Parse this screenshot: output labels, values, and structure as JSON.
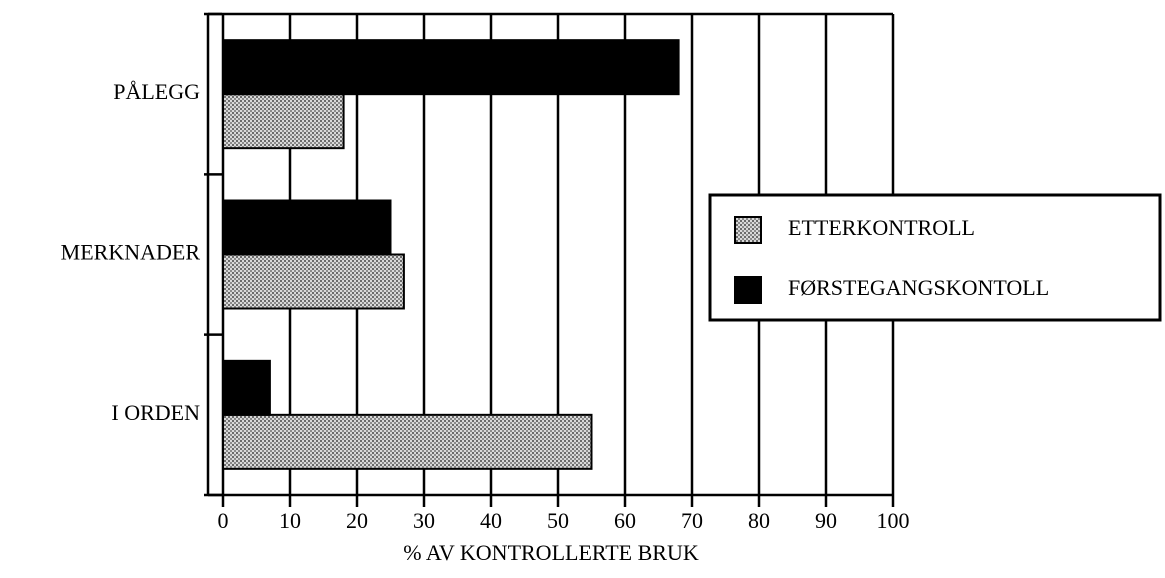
{
  "chart_data": {
    "type": "hbar",
    "xlabel": "% AV KONTROLLERTE BRUK",
    "categories": [
      "PÅLEGG",
      "MERKNADER",
      "I ORDEN"
    ],
    "series": [
      {
        "name": "ETTERKONTROLL",
        "color": "#bdbdbd",
        "values": [
          18,
          27,
          55
        ]
      },
      {
        "name": "FØRSTEGANGSKONTOLL",
        "color": "#000000",
        "values": [
          68,
          25,
          7
        ]
      }
    ],
    "xlim": [
      0,
      100
    ],
    "xticks": [
      0,
      10,
      20,
      30,
      40,
      50,
      60,
      70,
      80,
      90,
      100
    ],
    "grid": true,
    "legend": "right"
  }
}
